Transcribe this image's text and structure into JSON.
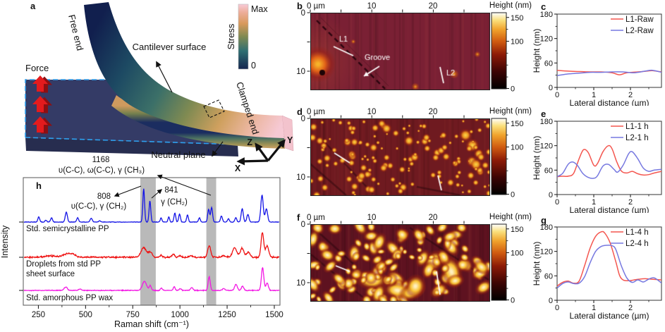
{
  "panels": {
    "a": {
      "label": "a"
    },
    "b": {
      "label": "b"
    },
    "c": {
      "label": "c"
    },
    "d": {
      "label": "d"
    },
    "e": {
      "label": "e"
    },
    "f": {
      "label": "f"
    },
    "g": {
      "label": "g"
    },
    "h": {
      "label": "h"
    }
  },
  "panel_a": {
    "force_label": "Force",
    "free_end_label": "Free end",
    "surface_label": "Cantilever surface",
    "clamped_label": "Clamped end",
    "neutral_label": "Neutral plane",
    "colorbar": {
      "title": "Stress",
      "max": "Max",
      "min": "0"
    },
    "axes": {
      "x": "X",
      "y": "Y",
      "z": "Z"
    },
    "accent_colors": {
      "force_red": "#e31b1d",
      "dash_cyan": "#2ea0ee",
      "stress_scale": [
        "#14254f",
        "#2f6e72",
        "#7f8a52",
        "#d8995c",
        "#f8cbd8"
      ]
    }
  },
  "afm_panels": [
    {
      "id": "b",
      "x_axis_labels": [
        "0 µm",
        "10",
        "20"
      ],
      "y_axis_labels": [
        "0",
        "10"
      ],
      "colorbar": {
        "title": "Height (nm)",
        "major_ticks": [
          "150",
          "100",
          "0"
        ]
      },
      "annotations": {
        "l1": "L1",
        "groove": "Groove",
        "l2": "L2"
      },
      "texture": {
        "style": "smooth",
        "bg": "#7a2034",
        "seed": 5
      }
    },
    {
      "id": "d",
      "x_axis_labels": [
        "0 µm",
        "10",
        "20"
      ],
      "y_axis_labels": [
        "0",
        "10"
      ],
      "colorbar": {
        "title": "Height (nm)",
        "major_ticks": [
          "150",
          "100",
          "0"
        ]
      },
      "annotations": {},
      "texture": {
        "style": "dots",
        "bg": "#6f1a20",
        "seed": 12,
        "count": 155,
        "rmin": 1.2,
        "rmax": 3.6,
        "core": "#f8ce44",
        "mid": "#eb9220"
      }
    },
    {
      "id": "f",
      "x_axis_labels": [
        "0 µm",
        "10",
        "20"
      ],
      "y_axis_labels": [
        "0",
        "10"
      ],
      "colorbar": {
        "title": "Height (nm)",
        "major_ticks": [
          "150",
          "100",
          "0"
        ]
      },
      "annotations": {},
      "texture": {
        "style": "dots",
        "bg": "#5e1220",
        "seed": 31,
        "count": 130,
        "rmin": 2.2,
        "rmax": 5.5,
        "core": "#fff0c0",
        "mid": "#f8c030"
      }
    }
  ],
  "chart_data": [
    {
      "id": "c",
      "type": "line",
      "xlabel": "Lateral distance (µm)",
      "ylabel": "Height (nm)",
      "xlim": [
        0,
        2.85
      ],
      "ylim": [
        0,
        180
      ],
      "xticks": [
        0,
        1,
        2
      ],
      "yticks": [
        0,
        60,
        120,
        180
      ],
      "legend_position": "top-right",
      "grid": false,
      "series": [
        {
          "name": "L1-Raw",
          "color": "#f4564f",
          "points": [
            [
              0,
              42
            ],
            [
              0.3,
              40
            ],
            [
              0.6,
              39
            ],
            [
              0.9,
              38
            ],
            [
              1.2,
              38
            ],
            [
              1.5,
              36
            ],
            [
              1.7,
              31
            ],
            [
              1.9,
              36
            ],
            [
              2.2,
              38
            ],
            [
              2.45,
              40
            ],
            [
              2.6,
              41
            ],
            [
              2.85,
              38
            ]
          ]
        },
        {
          "name": "L2-Raw",
          "color": "#7678e0",
          "points": [
            [
              0,
              29
            ],
            [
              0.3,
              33
            ],
            [
              0.6,
              35
            ],
            [
              0.9,
              37
            ],
            [
              1.2,
              37
            ],
            [
              1.5,
              38
            ],
            [
              1.8,
              38
            ],
            [
              2.1,
              36
            ],
            [
              2.4,
              40
            ],
            [
              2.6,
              42
            ],
            [
              2.85,
              37
            ]
          ]
        }
      ]
    },
    {
      "id": "e",
      "type": "line",
      "xlabel": "Lateral distance (µm)",
      "ylabel": "Height (nm)",
      "xlim": [
        0,
        2.85
      ],
      "ylim": [
        0,
        180
      ],
      "xticks": [
        0,
        1,
        2
      ],
      "yticks": [
        0,
        60,
        120,
        180
      ],
      "legend_position": "top-right",
      "grid": false,
      "series": [
        {
          "name": "L1-1 h",
          "color": "#f4564f",
          "points": [
            [
              0,
              44
            ],
            [
              0.15,
              45
            ],
            [
              0.3,
              45
            ],
            [
              0.45,
              52
            ],
            [
              0.6,
              88
            ],
            [
              0.72,
              110
            ],
            [
              0.85,
              103
            ],
            [
              1.0,
              72
            ],
            [
              1.1,
              76
            ],
            [
              1.25,
              105
            ],
            [
              1.4,
              120
            ],
            [
              1.5,
              112
            ],
            [
              1.62,
              82
            ],
            [
              1.75,
              58
            ],
            [
              1.9,
              53
            ],
            [
              2.05,
              57
            ],
            [
              2.2,
              51
            ],
            [
              2.35,
              48
            ],
            [
              2.5,
              49
            ],
            [
              2.65,
              53
            ],
            [
              2.85,
              57
            ]
          ]
        },
        {
          "name": "L2-1 h",
          "color": "#7678e0",
          "points": [
            [
              0,
              44
            ],
            [
              0.15,
              52
            ],
            [
              0.3,
              74
            ],
            [
              0.42,
              80
            ],
            [
              0.55,
              72
            ],
            [
              0.7,
              52
            ],
            [
              0.85,
              42
            ],
            [
              1.0,
              40
            ],
            [
              1.1,
              46
            ],
            [
              1.25,
              70
            ],
            [
              1.4,
              74
            ],
            [
              1.55,
              62
            ],
            [
              1.65,
              55
            ],
            [
              1.8,
              72
            ],
            [
              1.95,
              100
            ],
            [
              2.05,
              105
            ],
            [
              2.2,
              88
            ],
            [
              2.35,
              65
            ],
            [
              2.5,
              57
            ],
            [
              2.65,
              60
            ],
            [
              2.85,
              62
            ]
          ]
        }
      ]
    },
    {
      "id": "g",
      "type": "line",
      "xlabel": "Lateral distance (µm)",
      "ylabel": "Height (nm)",
      "xlim": [
        0,
        2.85
      ],
      "ylim": [
        0,
        180
      ],
      "xticks": [
        0,
        1,
        2
      ],
      "yticks": [
        0,
        60,
        120,
        180
      ],
      "legend_position": "top-right",
      "grid": false,
      "series": [
        {
          "name": "L1-4 h",
          "color": "#f4564f",
          "points": [
            [
              0,
              35
            ],
            [
              0.15,
              44
            ],
            [
              0.3,
              47
            ],
            [
              0.45,
              42
            ],
            [
              0.6,
              47
            ],
            [
              0.75,
              85
            ],
            [
              0.9,
              128
            ],
            [
              1.05,
              157
            ],
            [
              1.2,
              168
            ],
            [
              1.3,
              165
            ],
            [
              1.45,
              140
            ],
            [
              1.6,
              95
            ],
            [
              1.7,
              62
            ],
            [
              1.8,
              50
            ],
            [
              1.95,
              48
            ],
            [
              2.1,
              50
            ],
            [
              2.25,
              52
            ],
            [
              2.4,
              53
            ],
            [
              2.55,
              52
            ],
            [
              2.7,
              51
            ],
            [
              2.85,
              50
            ]
          ]
        },
        {
          "name": "L2-4 h",
          "color": "#7678e0",
          "points": [
            [
              0,
              30
            ],
            [
              0.15,
              41
            ],
            [
              0.3,
              45
            ],
            [
              0.45,
              41
            ],
            [
              0.6,
              42
            ],
            [
              0.75,
              58
            ],
            [
              0.9,
              92
            ],
            [
              1.05,
              120
            ],
            [
              1.2,
              132
            ],
            [
              1.35,
              135
            ],
            [
              1.5,
              134
            ],
            [
              1.6,
              125
            ],
            [
              1.75,
              85
            ],
            [
              1.9,
              55
            ],
            [
              2.05,
              44
            ],
            [
              2.2,
              50
            ],
            [
              2.35,
              45
            ],
            [
              2.5,
              52
            ],
            [
              2.65,
              55
            ],
            [
              2.85,
              42
            ]
          ]
        }
      ]
    },
    {
      "id": "h",
      "type": "spectra",
      "xlabel": "Raman shift (cm⁻¹)",
      "ylabel": "Intensity",
      "xlim": [
        170,
        1530
      ],
      "xticks": [
        250,
        500,
        750,
        1000,
        1250,
        1500
      ],
      "highlight_bands": [
        [
          790,
          872
        ],
        [
          1140,
          1192
        ]
      ],
      "annotations": {
        "band1168_num": "1168",
        "band1168_modes": "υ(C-C), ω(C-C), γ (CH₃)",
        "peak808_num": "808",
        "peak808_modes": "υ(C-C), γ (CH₂)",
        "peak841_num": "841",
        "peak841_modes": "γ (CH₂)"
      },
      "traces": [
        {
          "name": "Std. semicrystalline PP",
          "label_lines": [
            "Std. semicrystalline PP"
          ],
          "color": "#1414e6",
          "noise": 0.55,
          "seed": 7,
          "peaks": [
            [
              252,
              11,
              7
            ],
            [
              290,
              4,
              7
            ],
            [
              320,
              9,
              7
            ],
            [
              398,
              21,
              8
            ],
            [
              458,
              9,
              7
            ],
            [
              530,
              8,
              8
            ],
            [
              575,
              3,
              7
            ],
            [
              808,
              70,
              6.5
            ],
            [
              841,
              44,
              6.5
            ],
            [
              900,
              9,
              6
            ],
            [
              941,
              11,
              6
            ],
            [
              973,
              19,
              6.5
            ],
            [
              998,
              17,
              6.5
            ],
            [
              1040,
              15,
              6.5
            ],
            [
              1103,
              9,
              6.5
            ],
            [
              1152,
              27,
              7
            ],
            [
              1168,
              31,
              7
            ],
            [
              1220,
              13,
              7
            ],
            [
              1257,
              7,
              7
            ],
            [
              1296,
              9,
              7
            ],
            [
              1330,
              28,
              8
            ],
            [
              1360,
              16,
              8
            ],
            [
              1435,
              57,
              9
            ],
            [
              1458,
              28,
              9
            ]
          ]
        },
        {
          "name": "Droplets from std PP sheet surface",
          "label_lines": [
            "Droplets from std PP",
            "sheet surface"
          ],
          "color": "#ee1111",
          "noise": 1.6,
          "seed": 11,
          "peaks": [
            [
              310,
              3,
              40
            ],
            [
              400,
              7,
              30
            ],
            [
              435,
              5,
              22
            ],
            [
              808,
              20,
              20
            ],
            [
              843,
              11,
              14
            ],
            [
              900,
              4,
              10
            ],
            [
              965,
              6,
              10
            ],
            [
              1000,
              3,
              10
            ],
            [
              1060,
              4,
              12
            ],
            [
              1155,
              25,
              11
            ],
            [
              1230,
              4,
              12
            ],
            [
              1290,
              20,
              16
            ],
            [
              1330,
              19,
              14
            ],
            [
              1363,
              11,
              12
            ],
            [
              1437,
              52,
              10
            ],
            [
              1462,
              24,
              12
            ]
          ]
        },
        {
          "name": "Std. amorphous PP wax",
          "label_lines": [
            "Std. amorphous PP wax"
          ],
          "color": "#f318e4",
          "noise": 0.85,
          "seed": 23,
          "peaks": [
            [
              395,
              7,
              12
            ],
            [
              470,
              3,
              9
            ],
            [
              812,
              19,
              16
            ],
            [
              843,
              10,
              8
            ],
            [
              902,
              5,
              7
            ],
            [
              970,
              8,
              7
            ],
            [
              1002,
              4,
              8
            ],
            [
              1063,
              6,
              9
            ],
            [
              1155,
              29,
              8
            ],
            [
              1232,
              4,
              9
            ],
            [
              1297,
              13,
              10
            ],
            [
              1332,
              9,
              9
            ],
            [
              1438,
              48,
              9
            ],
            [
              1462,
              16,
              9
            ]
          ]
        }
      ]
    }
  ]
}
